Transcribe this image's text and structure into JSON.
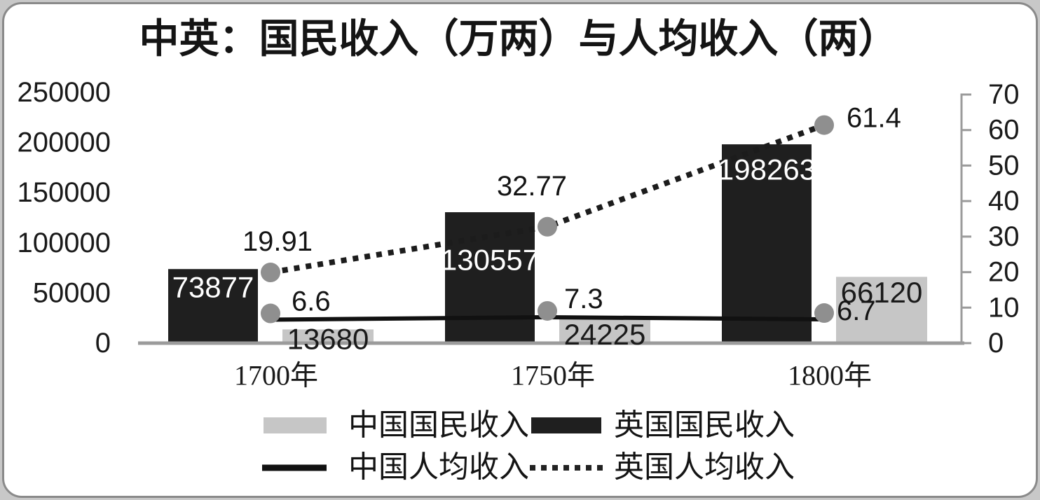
{
  "page": {
    "background_color": "#c8c8c8",
    "frame_border_color": "#8a8a8a",
    "card_color": "#ffffff"
  },
  "chart_data": {
    "type": "combo-bar-line",
    "title": "中英：国民收入（万两）与人均收入（两）",
    "categories": [
      "1700年",
      "1750年",
      "1800年"
    ],
    "bar_series": [
      {
        "name": "中国国民收入",
        "color": "#c6c6c6",
        "axis": "left",
        "values": [
          13680,
          24225,
          66120
        ],
        "labels": [
          "13680",
          "24225",
          "66120"
        ],
        "label_color": "#1a1a1a"
      },
      {
        "name": "英国国民收入",
        "color": "#1f1f1f",
        "axis": "left",
        "values": [
          73877,
          130557,
          198263
        ],
        "labels": [
          "73877",
          "130557",
          "198263"
        ],
        "label_color": "#ffffff"
      }
    ],
    "line_series": [
      {
        "name": "中国人均收入",
        "style": "solid",
        "color": "#111111",
        "axis": "right",
        "values": [
          6.6,
          7.3,
          6.7
        ],
        "labels": [
          "6.6",
          "7.3",
          "6.7"
        ]
      },
      {
        "name": "英国人均收入",
        "style": "dotted",
        "color": "#1c1c1c",
        "axis": "right",
        "values": [
          19.91,
          32.77,
          61.4
        ],
        "labels": [
          "19.91",
          "32.77",
          "61.4"
        ]
      }
    ],
    "marker_color": "#8f8f8f",
    "left_axis": {
      "min": 0,
      "max": 250000,
      "ticks": [
        250000,
        200000,
        150000,
        100000,
        50000,
        0
      ]
    },
    "right_axis": {
      "min": 0,
      "max": 70,
      "ticks": [
        70,
        60,
        50,
        40,
        30,
        20,
        10,
        0
      ]
    },
    "axis_color": "#9b9b9b",
    "grid": false,
    "legend_position": "bottom",
    "legend": [
      {
        "label": "中国国民收入",
        "swatch": "bar",
        "color": "#c6c6c6"
      },
      {
        "label": "英国国民收入",
        "swatch": "bar",
        "color": "#1f1f1f"
      },
      {
        "label": "中国人均收入",
        "swatch": "line-solid",
        "color": "#111111"
      },
      {
        "label": "英国人均收入",
        "swatch": "line-dotted",
        "color": "#222222"
      }
    ]
  }
}
